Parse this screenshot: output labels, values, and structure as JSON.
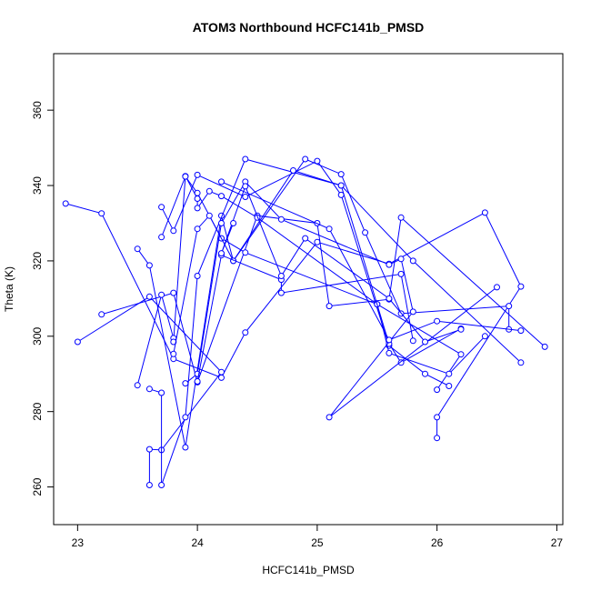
{
  "chart_data": {
    "type": "line",
    "title": "ATOM3 Northbound HCFC141b_PMSD",
    "xlabel": "HCFC141b_PMSD",
    "ylabel": "Theta (K)",
    "xlim": [
      22.8,
      27.05
    ],
    "ylim": [
      250,
      375
    ],
    "xticks": [
      23,
      24,
      25,
      26,
      27
    ],
    "yticks": [
      260,
      280,
      300,
      320,
      340,
      360
    ],
    "grid": false,
    "legend": "none",
    "series_color": "#0000ff",
    "marker": "open-circle",
    "series": [
      {
        "x": [
          22.9,
          23.2,
          23.8,
          24.2,
          24.4,
          25.0,
          25.6,
          26.4,
          26.7,
          26.0,
          26.0
        ],
        "y": [
          335.2,
          332.6,
          294.0,
          289.0,
          301.0,
          325.0,
          319.2,
          332.8,
          313.2,
          278.5,
          273.0
        ]
      },
      {
        "x": [
          23.0,
          23.6,
          24.2,
          23.7,
          23.6,
          23.6
        ],
        "y": [
          298.5,
          310.5,
          290.5,
          269.8,
          270.0,
          260.5
        ]
      },
      {
        "x": [
          23.2,
          23.8,
          24.0,
          24.5,
          25.0,
          25.1,
          25.6,
          25.7,
          26.9
        ],
        "y": [
          305.8,
          311.5,
          287.8,
          332.0,
          330.0,
          308.0,
          309.8,
          331.5,
          297.2
        ]
      },
      {
        "x": [
          23.5,
          23.6,
          23.9,
          24.2,
          24.3,
          24.9,
          25.2,
          25.4,
          25.7,
          26.6,
          26.6
        ],
        "y": [
          323.2,
          318.8,
          270.5,
          332.0,
          320.0,
          347.0,
          343.0,
          327.5,
          306.0,
          308.0,
          301.8
        ]
      },
      {
        "x": [
          23.5,
          23.7,
          23.8,
          23.8,
          23.9,
          24.0,
          24.0,
          24.1,
          24.2,
          24.5,
          25.5,
          26.2,
          26.0
        ],
        "y": [
          287.0,
          311.0,
          299.5,
          298.5,
          342.5,
          336.5,
          334.0,
          338.5,
          337.2,
          331.5,
          308.5,
          295.2,
          285.8
        ]
      },
      {
        "x": [
          23.6,
          23.7,
          23.7,
          23.9,
          24.0,
          24.4,
          25.2,
          25.8,
          26.7
        ],
        "y": [
          286.0,
          285.0,
          260.5,
          278.5,
          316.0,
          347.0,
          340.0,
          320.0,
          293.0
        ]
      },
      {
        "x": [
          23.7,
          23.8,
          24.0,
          24.4,
          25.0,
          25.2,
          25.6,
          25.9,
          26.1
        ],
        "y": [
          334.3,
          328.0,
          342.8,
          337.0,
          346.5,
          337.5,
          297.5,
          290.0,
          286.8
        ]
      },
      {
        "x": [
          23.7,
          23.9,
          24.0,
          24.2,
          24.4,
          25.5,
          25.6,
          26.1,
          26.4
        ],
        "y": [
          326.3,
          342.4,
          338.0,
          326.0,
          322.2,
          308.5,
          295.5,
          290.0,
          300.0
        ]
      },
      {
        "x": [
          23.8,
          24.0,
          24.1,
          24.3,
          24.8,
          25.2,
          25.6,
          25.7,
          26.2
        ],
        "y": [
          295.3,
          328.5,
          332.0,
          320.0,
          344.0,
          340.0,
          298.0,
          293.0,
          302.0
        ]
      },
      {
        "x": [
          23.9,
          24.0,
          24.2,
          24.4,
          24.7,
          25.6,
          25.7,
          25.8,
          25.1,
          26.5
        ],
        "y": [
          287.5,
          290.0,
          330.0,
          341.0,
          331.0,
          319.0,
          320.5,
          306.5,
          278.5,
          313.0
        ]
      },
      {
        "x": [
          24.0,
          24.2,
          24.7,
          24.7,
          25.7,
          25.8
        ],
        "y": [
          288.0,
          321.5,
          315.0,
          311.5,
          316.5,
          298.8
        ]
      },
      {
        "x": [
          24.3,
          24.2,
          24.4,
          24.7,
          24.9,
          25.6,
          25.9,
          26.2
        ],
        "y": [
          330.0,
          322.0,
          339.8,
          316.0,
          326.0,
          310.0,
          298.5,
          301.8
        ]
      },
      {
        "x": [
          24.2,
          25.1,
          25.6,
          26.0,
          26.7
        ],
        "y": [
          341.0,
          328.5,
          299.0,
          304.0,
          301.5
        ]
      }
    ]
  }
}
